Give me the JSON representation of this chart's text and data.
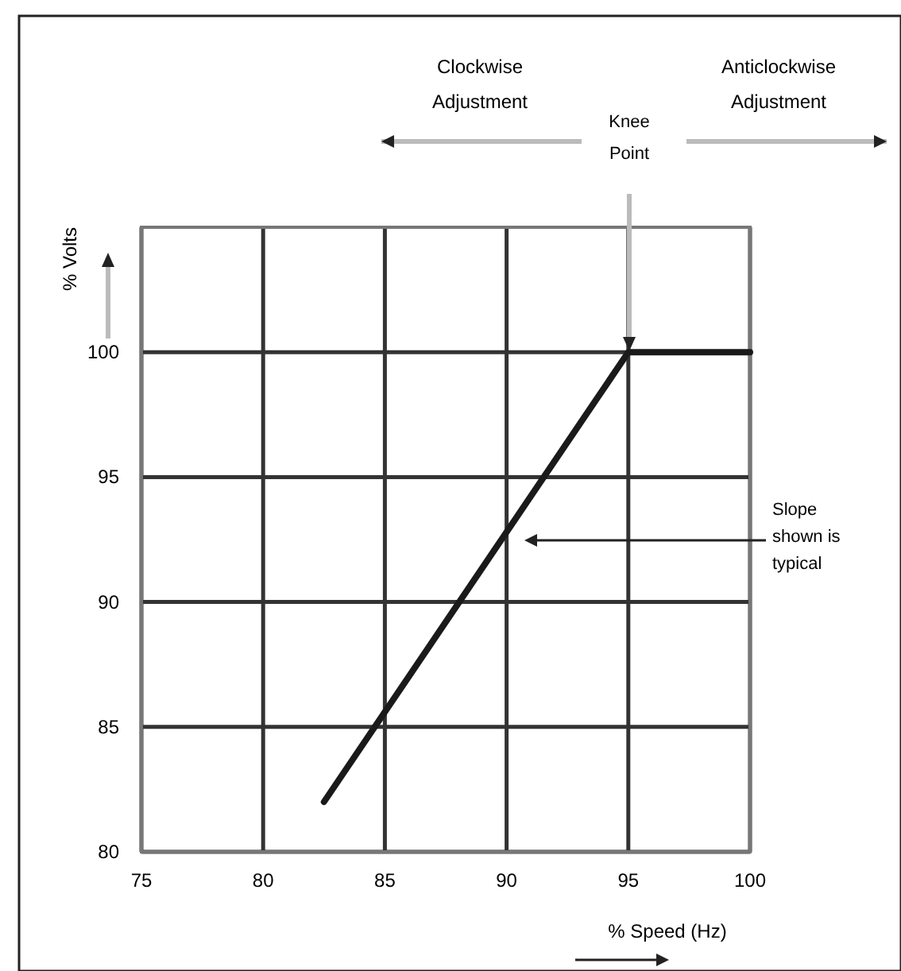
{
  "chart_data": {
    "type": "line",
    "xlabel": "% Speed (Hz)",
    "ylabel": "% Volts",
    "x": [
      82.5,
      95,
      100
    ],
    "series": [
      {
        "color": "#1a1a1a",
        "values": [
          82,
          100,
          100
        ]
      }
    ],
    "xlim": [
      75,
      100
    ],
    "xticks": [
      75,
      80,
      85,
      90,
      95,
      100
    ],
    "ylim": [
      80,
      105
    ],
    "yticks": [
      80,
      85,
      90,
      95,
      100
    ],
    "grid": true,
    "marker": "none",
    "line_style": "solid",
    "annotations": [
      "Clockwise Adjustment",
      "Anticlockwise Adjustment",
      "Knee Point",
      "Slope shown is typical"
    ]
  }
}
